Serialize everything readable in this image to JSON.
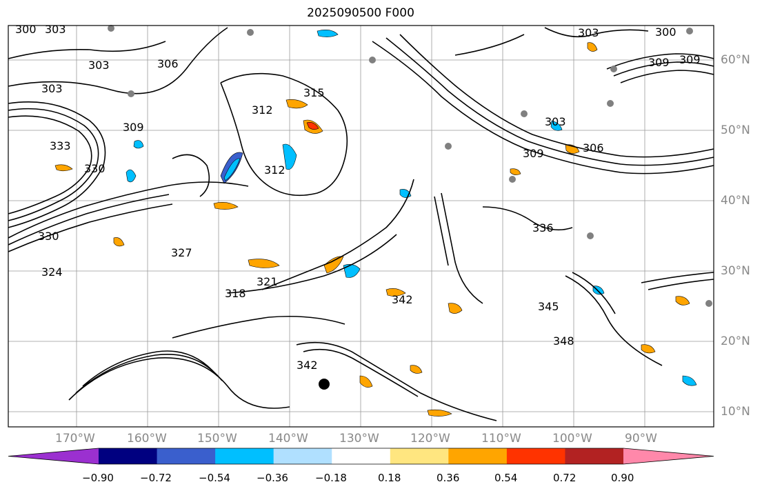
{
  "title": "2025090500 F000",
  "map": {
    "lon_labels": [
      "170°W",
      "160°W",
      "150°W",
      "140°W",
      "130°W",
      "120°W",
      "110°W",
      "100°W",
      "90°W"
    ],
    "lat_labels": [
      "60°N",
      "50°N",
      "40°N",
      "30°N",
      "20°N",
      "10°N"
    ],
    "contour_labels": [
      "300",
      "303",
      "303",
      "306",
      "309",
      "303",
      "309",
      "330",
      "333",
      "312",
      "315",
      "312",
      "318",
      "321",
      "324",
      "327",
      "330",
      "336",
      "342",
      "345",
      "348",
      "342",
      "303",
      "306",
      "309",
      "300",
      "303",
      "309"
    ]
  },
  "colorbar": {
    "ticks": [
      "−0.90",
      "−0.72",
      "−0.54",
      "−0.36",
      "−0.18",
      "0.18",
      "0.36",
      "0.54",
      "0.72",
      "0.90"
    ],
    "colors": [
      "#9b30d0",
      "#000080",
      "#3a5fcd",
      "#00bfff",
      "#b0e0ff",
      "#ffffff",
      "#ffe680",
      "#ffa500",
      "#ff3300",
      "#b22222",
      "#ff88aa"
    ],
    "under_color": "#9b30d0",
    "over_color": "#ff88aa"
  }
}
